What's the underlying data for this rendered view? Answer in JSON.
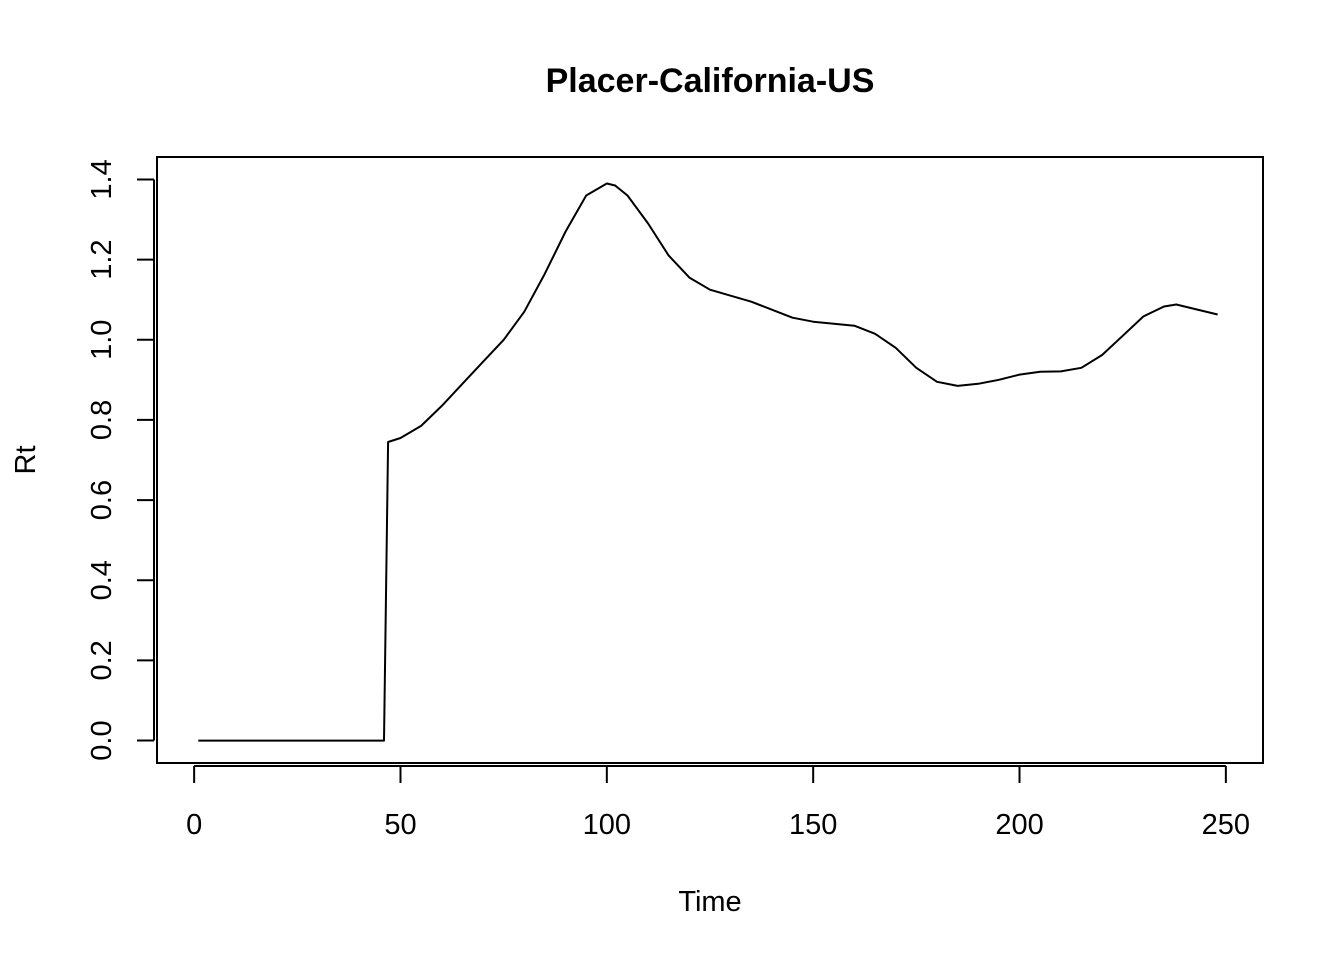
{
  "chart_data": {
    "type": "line",
    "title": "Placer-California-US",
    "xlabel": "Time",
    "ylabel": "Rt",
    "xlim": [
      -9,
      259
    ],
    "ylim": [
      -0.056,
      1.456
    ],
    "x_ticks": [
      0,
      50,
      100,
      150,
      200,
      250
    ],
    "x_tick_labels": [
      "0",
      "50",
      "100",
      "150",
      "200",
      "250"
    ],
    "y_ticks": [
      0.0,
      0.2,
      0.4,
      0.6,
      0.8,
      1.0,
      1.2,
      1.4
    ],
    "y_tick_labels": [
      "0.0",
      "0.2",
      "0.4",
      "0.6",
      "0.8",
      "1.0",
      "1.2",
      "1.4"
    ],
    "grid": false,
    "series": [
      {
        "color": "#000000",
        "x": [
          1,
          10,
          20,
          30,
          40,
          46,
          47,
          50,
          55,
          60,
          65,
          70,
          75,
          80,
          85,
          90,
          95,
          100,
          102,
          105,
          110,
          115,
          120,
          125,
          130,
          135,
          140,
          145,
          150,
          155,
          160,
          165,
          170,
          175,
          180,
          185,
          190,
          195,
          200,
          205,
          210,
          215,
          220,
          225,
          230,
          235,
          238,
          242,
          248
        ],
        "y": [
          0,
          0,
          0,
          0,
          0,
          0,
          0.745,
          0.755,
          0.785,
          0.835,
          0.89,
          0.945,
          1.0,
          1.07,
          1.165,
          1.27,
          1.36,
          1.39,
          1.385,
          1.36,
          1.29,
          1.21,
          1.155,
          1.125,
          1.11,
          1.095,
          1.075,
          1.055,
          1.045,
          1.04,
          1.035,
          1.015,
          0.98,
          0.93,
          0.895,
          0.885,
          0.89,
          0.9,
          0.913,
          0.92,
          0.921,
          0.93,
          0.962,
          1.01,
          1.058,
          1.083,
          1.088,
          1.078,
          1.063
        ]
      }
    ]
  }
}
